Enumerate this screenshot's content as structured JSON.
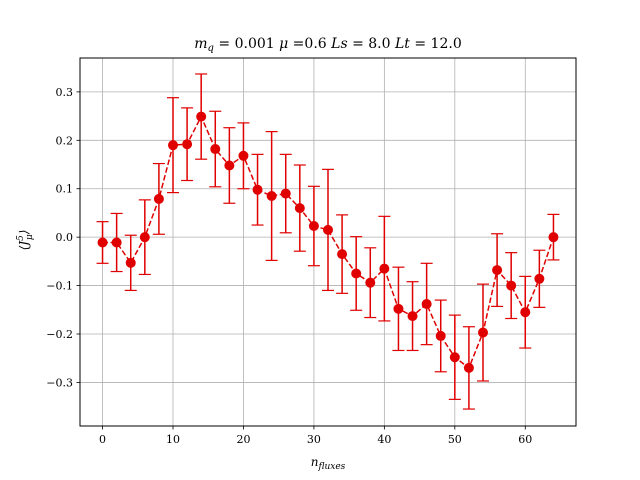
{
  "chart_data": {
    "type": "scatter",
    "title": "m_q = 0.001 μ =0.6 Ls = 8.0 Lt = 12.0",
    "xlabel": "n_fluxes",
    "ylabel": "⟨J⁵_μ⟩",
    "xlim": [
      -3.2,
      67.2
    ],
    "ylim": [
      -0.39,
      0.37
    ],
    "xticks": [
      0,
      10,
      20,
      30,
      40,
      50,
      60
    ],
    "yticks": [
      -0.3,
      -0.2,
      -0.1,
      0.0,
      0.1,
      0.2,
      0.3
    ],
    "xtick_labels": [
      "0",
      "10",
      "20",
      "30",
      "40",
      "50",
      "60"
    ],
    "ytick_labels": [
      "−0.3",
      "−0.2",
      "−0.1",
      "0.0",
      "0.1",
      "0.2",
      "0.3"
    ],
    "grid": true,
    "line_style": "dashed",
    "marker": "circle",
    "errorbars": true,
    "color": "#e00000",
    "series": [
      {
        "x": [
          0,
          2,
          4,
          6,
          8,
          10,
          12,
          14,
          16,
          18,
          20,
          22,
          24,
          26,
          28,
          30,
          32,
          34,
          36,
          38,
          40,
          42,
          44,
          46,
          48,
          50,
          52,
          54,
          56,
          58,
          60,
          62,
          64
        ],
        "y": [
          -0.011,
          -0.011,
          -0.053,
          0.0,
          0.079,
          0.19,
          0.192,
          0.249,
          0.182,
          0.148,
          0.168,
          0.098,
          0.085,
          0.09,
          0.06,
          0.023,
          0.015,
          -0.035,
          -0.075,
          -0.094,
          -0.065,
          -0.148,
          -0.163,
          -0.138,
          -0.204,
          -0.248,
          -0.27,
          -0.197,
          -0.068,
          -0.1,
          -0.155,
          -0.086,
          0.0
        ],
        "err": [
          0.043,
          0.06,
          0.057,
          0.077,
          0.073,
          0.098,
          0.075,
          0.088,
          0.078,
          0.078,
          0.068,
          0.073,
          0.133,
          0.081,
          0.089,
          0.082,
          0.125,
          0.081,
          0.076,
          0.072,
          0.108,
          0.086,
          0.071,
          0.084,
          0.074,
          0.087,
          0.085,
          0.1,
          0.075,
          0.068,
          0.074,
          0.059,
          0.047
        ]
      }
    ]
  }
}
